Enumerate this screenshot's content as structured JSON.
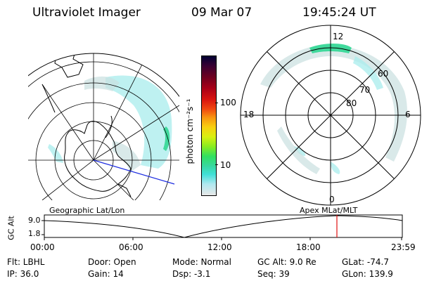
{
  "header": {
    "instrument": "Ultraviolet Imager",
    "date": "09 Mar 07",
    "time": "19:45:24 UT"
  },
  "colorbar": {
    "unit_label": "photon cm⁻²s⁻¹",
    "ticks": [
      "100",
      "10"
    ],
    "colors": [
      "#000033",
      "#3a0033",
      "#6e0020",
      "#a80018",
      "#d81410",
      "#f04810",
      "#f89410",
      "#f8d010",
      "#d8f010",
      "#88ec20",
      "#30e060",
      "#38d8a0",
      "#40e0d8",
      "#b0e8f0",
      "#e8e8e8"
    ]
  },
  "left_panel": {
    "title": "Geographic Lat/Lon"
  },
  "right_panel": {
    "title": "Apex  MLat/MLT",
    "mlt_labels": {
      "top": "12",
      "left": "18",
      "right": "6",
      "bottom": "0"
    },
    "lat_labels": [
      "60",
      "70",
      "80"
    ]
  },
  "timeline": {
    "axis_label": "GC Alt",
    "y_ticks": [
      "9.0",
      "1.8"
    ],
    "x_ticks": [
      "00:00",
      "06:00",
      "12:00",
      "18:00",
      "23:59"
    ],
    "marker_color": "#e01010"
  },
  "info": {
    "filter": "Flt: LBHL",
    "ip": "IP: 36.0",
    "door": "Door: Open",
    "gain": "Gain: 14",
    "mode": "Mode: Normal",
    "dsp": "Dsp:   -3.1",
    "gc_alt": "GC Alt: 9.0 Re",
    "seq": "Seq: 39",
    "glat": "GLat: -74.7",
    "glon": "GLon: 139.9"
  }
}
